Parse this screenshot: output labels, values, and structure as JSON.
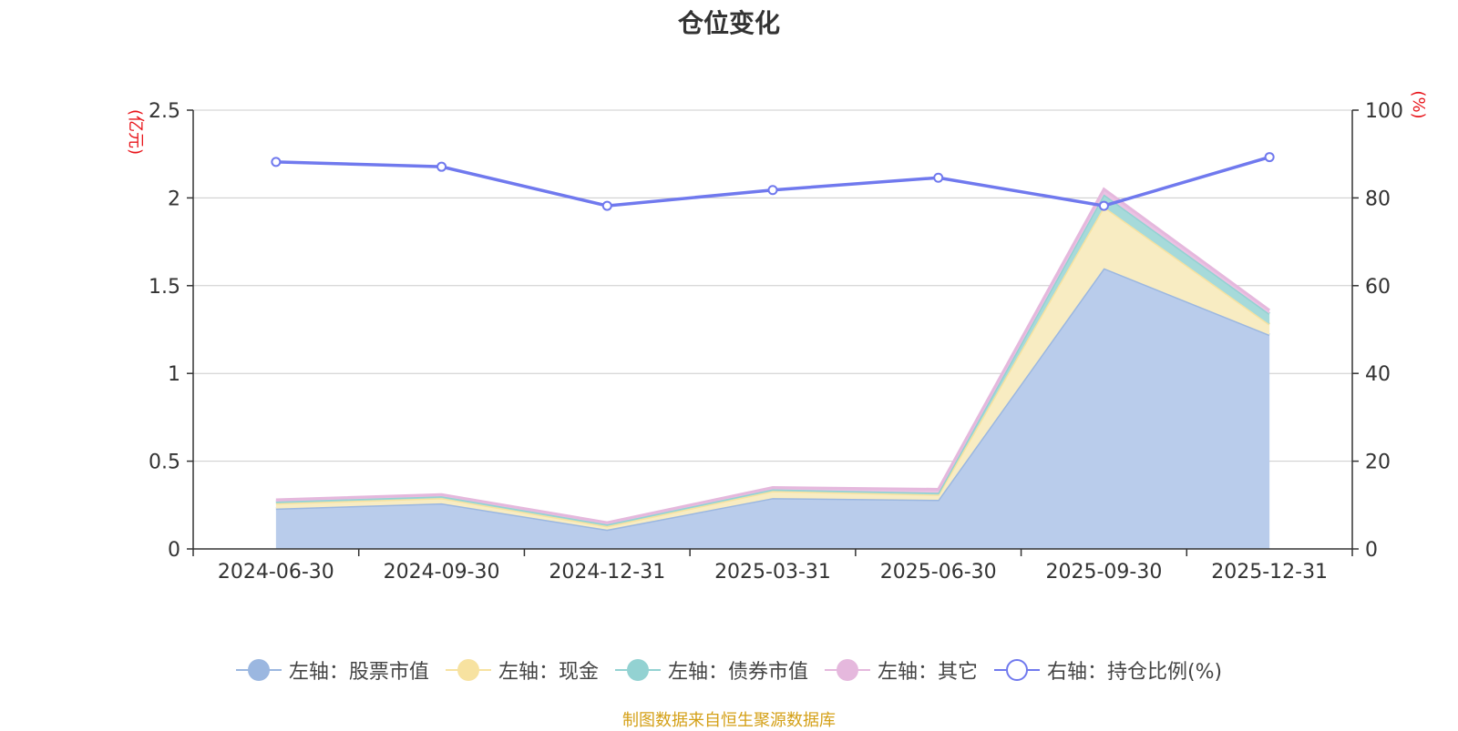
{
  "title": "仓位变化",
  "source": "制图数据来自恒生聚源数据库",
  "chart_data": {
    "type": "area",
    "stacked": true,
    "categories": [
      "2024-06-30",
      "2024-09-30",
      "2024-12-31",
      "2025-03-31",
      "2025-06-30",
      "2025-09-30",
      "2025-12-31"
    ],
    "left_axis": {
      "unit": "(亿元)",
      "range": [
        0,
        2.5
      ],
      "ticks": [
        "0",
        "0.5",
        "1",
        "1.5",
        "2",
        "2.5"
      ]
    },
    "right_axis": {
      "unit": "(%)",
      "range": [
        0,
        100
      ],
      "ticks": [
        "0",
        "20",
        "40",
        "60",
        "80",
        "100"
      ]
    },
    "grid": true,
    "legend_position": "bottom",
    "series": [
      {
        "name": "左轴：股票市值",
        "axis": "left",
        "kind": "area",
        "color": "#9bb7e0",
        "fill": "#b9cceb",
        "values": [
          0.23,
          0.26,
          0.11,
          0.29,
          0.28,
          1.6,
          1.22
        ]
      },
      {
        "name": "左轴：现金",
        "axis": "left",
        "kind": "area",
        "color": "#f7e2a0",
        "fill": "#f8ecc2",
        "values": [
          0.03,
          0.03,
          0.02,
          0.04,
          0.03,
          0.35,
          0.06
        ]
      },
      {
        "name": "左轴：债券市值",
        "axis": "left",
        "kind": "area",
        "color": "#93d2d2",
        "fill": "#a6dada",
        "values": [
          0.01,
          0.01,
          0.01,
          0.01,
          0.01,
          0.07,
          0.06
        ]
      },
      {
        "name": "左轴：其它",
        "axis": "left",
        "kind": "area",
        "color": "#e5b8dd",
        "fill": "#ebc2e3",
        "values": [
          0.01,
          0.01,
          0.01,
          0.01,
          0.02,
          0.03,
          0.02
        ]
      },
      {
        "name": "右轴：持仓比例(%)",
        "axis": "right",
        "kind": "line",
        "color": "#7079ee",
        "values": [
          88.2,
          87.1,
          78.2,
          81.8,
          84.6,
          78.2,
          89.3
        ]
      }
    ]
  }
}
